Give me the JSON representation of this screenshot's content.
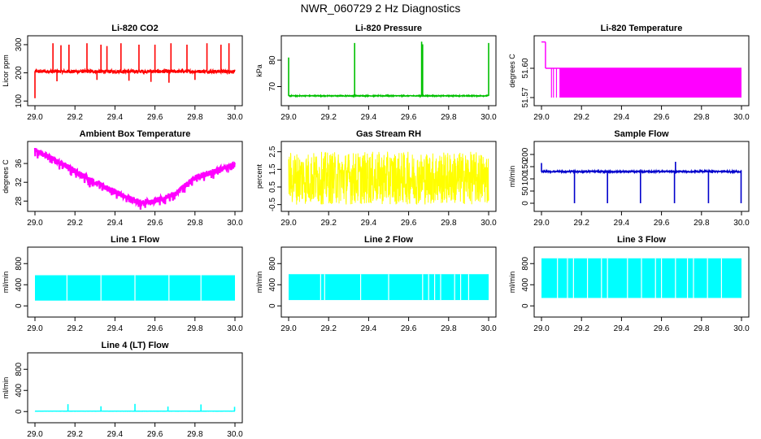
{
  "title": "NWR_060729  2 Hz Diagnostics",
  "chart_data": [
    {
      "type": "line",
      "title": "Li-820 CO2",
      "ylabel": "Licor ppm",
      "color": "#ff0000",
      "xlim": [
        29.0,
        30.0
      ],
      "ylim": [
        95,
        320
      ],
      "xticks": [
        "29.0",
        "29.2",
        "29.4",
        "29.6",
        "29.8",
        "30.0"
      ],
      "yticks": [
        {
          "value": 100,
          "label": "100"
        },
        {
          "value": 200,
          "label": "200"
        },
        {
          "value": 300,
          "label": "300"
        }
      ],
      "baseline": 205,
      "noise": 6,
      "spikes": [
        {
          "x": 29.0,
          "y": 110
        },
        {
          "x": 29.09,
          "y": 305
        },
        {
          "x": 29.13,
          "y": 298
        },
        {
          "x": 29.17,
          "y": 300
        },
        {
          "x": 29.26,
          "y": 305
        },
        {
          "x": 29.33,
          "y": 300
        },
        {
          "x": 29.36,
          "y": 295
        },
        {
          "x": 29.43,
          "y": 305
        },
        {
          "x": 29.52,
          "y": 300
        },
        {
          "x": 29.6,
          "y": 300
        },
        {
          "x": 29.68,
          "y": 305
        },
        {
          "x": 29.76,
          "y": 300
        },
        {
          "x": 29.86,
          "y": 305
        },
        {
          "x": 29.93,
          "y": 300
        },
        {
          "x": 29.97,
          "y": 305
        },
        {
          "x": 29.11,
          "y": 170
        },
        {
          "x": 29.31,
          "y": 175
        },
        {
          "x": 29.47,
          "y": 172
        },
        {
          "x": 29.58,
          "y": 168
        },
        {
          "x": 29.67,
          "y": 165
        },
        {
          "x": 29.8,
          "y": 175
        }
      ]
    },
    {
      "type": "line",
      "title": "Li-820 Pressure",
      "ylabel": "kPa",
      "color": "#00c000",
      "xlim": [
        29.0,
        30.0
      ],
      "ylim": [
        64,
        88
      ],
      "xticks": [
        "29.0",
        "29.2",
        "29.4",
        "29.6",
        "29.8",
        "30.0"
      ],
      "yticks": [
        {
          "value": 70,
          "label": "70"
        },
        {
          "value": 80,
          "label": "80"
        }
      ],
      "baseline": 66.5,
      "noise": 0.15,
      "spikes": [
        {
          "x": 29.0,
          "y": 81
        },
        {
          "x": 29.33,
          "y": 86.5
        },
        {
          "x": 29.665,
          "y": 87
        },
        {
          "x": 29.67,
          "y": 86
        },
        {
          "x": 30.0,
          "y": 86.5
        }
      ]
    },
    {
      "type": "step",
      "title": "Li-820 Temperature",
      "ylabel": "degrees C",
      "color": "#ff00ff",
      "xlim": [
        29.0,
        30.0
      ],
      "ylim": [
        51.565,
        51.63
      ],
      "xticks": [
        "29.0",
        "29.2",
        "29.4",
        "29.6",
        "29.8",
        "30.0"
      ],
      "yticks": [
        {
          "value": 51.57,
          "label": "51.57"
        },
        {
          "value": 51.6,
          "label": "51.60"
        }
      ],
      "high": 51.6,
      "low": 51.57,
      "start_value": 51.627,
      "start_until": 29.02,
      "dense_from": 29.09
    },
    {
      "type": "line",
      "title": "Ambient Box Temperature",
      "ylabel": "degrees C",
      "color": "#ff00ff",
      "xlim": [
        29.0,
        30.0
      ],
      "ylim": [
        26.5,
        40
      ],
      "xticks": [
        "29.0",
        "29.2",
        "29.4",
        "29.6",
        "29.8",
        "30.0"
      ],
      "yticks": [
        {
          "value": 28,
          "label": "28"
        },
        {
          "value": 32,
          "label": "32"
        },
        {
          "value": 36,
          "label": "36"
        }
      ],
      "profile": [
        {
          "x": 29.0,
          "y": 38.8
        },
        {
          "x": 29.1,
          "y": 36.8
        },
        {
          "x": 29.3,
          "y": 32.0
        },
        {
          "x": 29.5,
          "y": 28.0
        },
        {
          "x": 29.58,
          "y": 27.8
        },
        {
          "x": 29.7,
          "y": 29.5
        },
        {
          "x": 29.8,
          "y": 33.0
        },
        {
          "x": 30.0,
          "y": 35.8
        }
      ],
      "noise": 0.6
    },
    {
      "type": "line",
      "title": "Gas Stream RH",
      "ylabel": "percent",
      "color": "#ffff00",
      "xlim": [
        29.0,
        30.0
      ],
      "ylim": [
        -0.7,
        2.9
      ],
      "xticks": [
        "29.0",
        "29.2",
        "29.4",
        "29.6",
        "29.8",
        "30.0"
      ],
      "yticks": [
        {
          "value": -0.5,
          "label": "-0.5"
        },
        {
          "value": 0.5,
          "label": "0.5"
        },
        {
          "value": 1.5,
          "label": "1.5"
        },
        {
          "value": 2.5,
          "label": "2.5"
        }
      ],
      "baseline": 1.0,
      "noise": 1.5
    },
    {
      "type": "line",
      "title": "Sample Flow",
      "ylabel": "ml/min",
      "color": "#0000cc",
      "xlim": [
        29.0,
        30.0
      ],
      "ylim": [
        -20,
        240
      ],
      "xticks": [
        "29.0",
        "29.2",
        "29.4",
        "29.6",
        "29.8",
        "30.0"
      ],
      "yticks": [
        {
          "value": 0,
          "label": "0"
        },
        {
          "value": 50,
          "label": "50"
        },
        {
          "value": 100,
          "label": "100"
        },
        {
          "value": 150,
          "label": "150"
        },
        {
          "value": 200,
          "label": "200"
        }
      ],
      "baseline": 130,
      "noise": 3,
      "spikes": [
        {
          "x": 29.0,
          "y": 165
        },
        {
          "x": 29.165,
          "y": 0
        },
        {
          "x": 29.33,
          "y": 0
        },
        {
          "x": 29.495,
          "y": 0
        },
        {
          "x": 29.665,
          "y": 0
        },
        {
          "x": 29.67,
          "y": 170
        },
        {
          "x": 29.835,
          "y": 0
        },
        {
          "x": 29.998,
          "y": 0
        }
      ]
    },
    {
      "type": "band",
      "title": "Line 1 Flow",
      "ylabel": "ml/min",
      "color": "#00ffff",
      "xlim": [
        29.0,
        30.0
      ],
      "ylim": [
        -150,
        1050
      ],
      "xticks": [
        "29.0",
        "29.2",
        "29.4",
        "29.6",
        "29.8",
        "30.0"
      ],
      "yticks": [
        {
          "value": 0,
          "label": "0"
        },
        {
          "value": 400,
          "label": "400"
        },
        {
          "value": 800,
          "label": "800"
        }
      ],
      "upper": 580,
      "lower": 100,
      "gaps": [
        29.16,
        29.33,
        29.5,
        29.67,
        29.83
      ]
    },
    {
      "type": "band",
      "title": "Line 2 Flow",
      "ylabel": "ml/min",
      "color": "#00ffff",
      "xlim": [
        29.0,
        30.0
      ],
      "ylim": [
        -150,
        1050
      ],
      "xticks": [
        "29.0",
        "29.2",
        "29.4",
        "29.6",
        "29.8",
        "30.0"
      ],
      "yticks": [
        {
          "value": 0,
          "label": "0"
        },
        {
          "value": 400,
          "label": "400"
        },
        {
          "value": 800,
          "label": "800"
        }
      ],
      "upper": 600,
      "lower": 110,
      "gaps": [
        29.16,
        29.18,
        29.36,
        29.5,
        29.67,
        29.7,
        29.73,
        29.76,
        29.83,
        29.86,
        29.9
      ]
    },
    {
      "type": "band",
      "title": "Line 3 Flow",
      "ylabel": "ml/min",
      "color": "#00ffff",
      "xlim": [
        29.0,
        30.0
      ],
      "ylim": [
        -150,
        1050
      ],
      "xticks": [
        "29.0",
        "29.2",
        "29.4",
        "29.6",
        "29.8",
        "30.0"
      ],
      "yticks": [
        {
          "value": 0,
          "label": "0"
        },
        {
          "value": 400,
          "label": "400"
        },
        {
          "value": 800,
          "label": "800"
        }
      ],
      "upper": 900,
      "lower": 150,
      "gaps": [
        29.08,
        29.13,
        29.16,
        29.23,
        29.3,
        29.33,
        29.43,
        29.5,
        29.57,
        29.6,
        29.67,
        29.73,
        29.76,
        29.83,
        29.9
      ]
    },
    {
      "type": "line",
      "title": "Line 4 (LT) Flow",
      "ylabel": "ml/min",
      "color": "#00ffff",
      "xlim": [
        29.0,
        30.0
      ],
      "ylim": [
        -150,
        1050
      ],
      "xticks": [
        "29.0",
        "29.2",
        "29.4",
        "29.6",
        "29.8",
        "30.0"
      ],
      "yticks": [
        {
          "value": 0,
          "label": "0"
        },
        {
          "value": 400,
          "label": "400"
        },
        {
          "value": 800,
          "label": "800"
        }
      ],
      "baseline": 8,
      "noise": 1,
      "spikes": [
        {
          "x": 29.165,
          "y": 140
        },
        {
          "x": 29.33,
          "y": 100
        },
        {
          "x": 29.5,
          "y": 145
        },
        {
          "x": 29.665,
          "y": 95
        },
        {
          "x": 29.83,
          "y": 135
        },
        {
          "x": 29.998,
          "y": 90
        }
      ]
    }
  ]
}
